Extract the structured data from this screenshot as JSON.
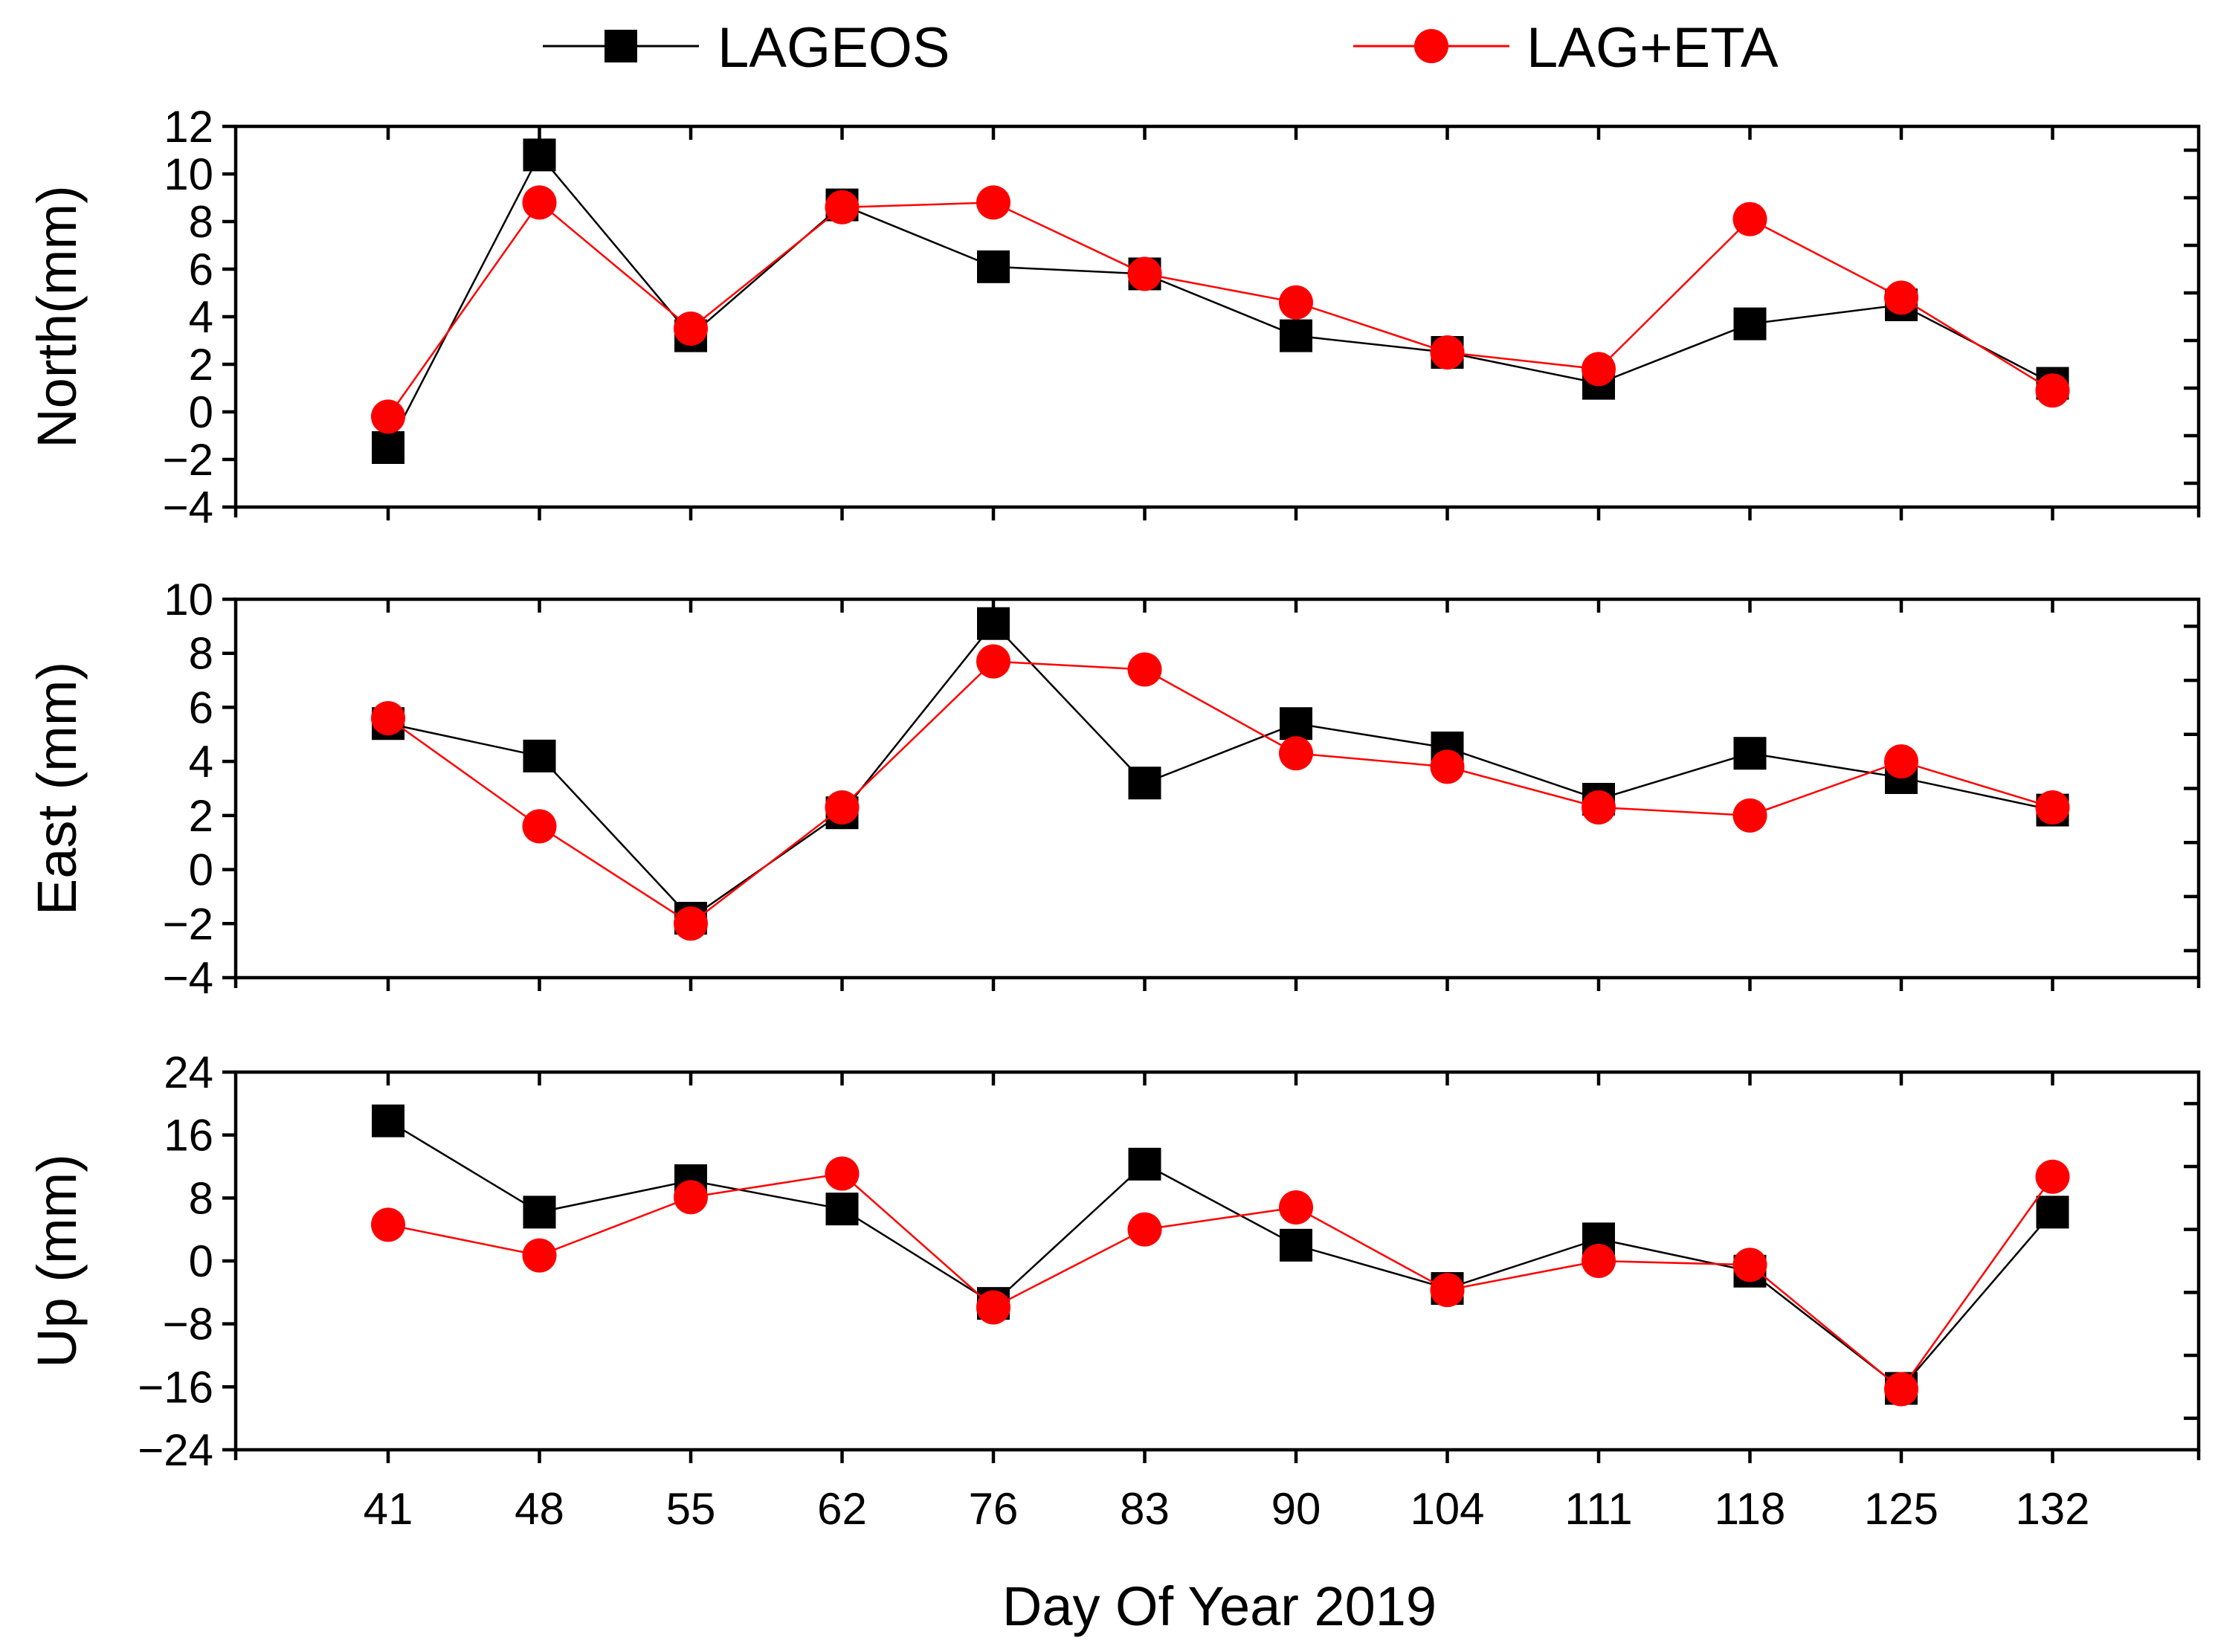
{
  "chart_data": {
    "type": "line",
    "categories": [
      "41",
      "48",
      "55",
      "62",
      "76",
      "83",
      "90",
      "104",
      "111",
      "118",
      "125",
      "132"
    ],
    "xlabel": "Day Of Year 2019",
    "legend": {
      "placement": "top",
      "entries": [
        "LAGEOS",
        "LAG+ETA"
      ]
    },
    "series_style": [
      {
        "name": "LAGEOS",
        "color": "#000000",
        "marker": "square"
      },
      {
        "name": "LAG+ETA",
        "color": "#ff0000",
        "marker": "circle"
      }
    ],
    "panels": [
      {
        "ylabel": "North(mm)",
        "ylim": [
          -4,
          12
        ],
        "yticks": [
          -4,
          -2,
          0,
          2,
          4,
          6,
          8,
          10,
          12
        ],
        "series": [
          {
            "name": "LAGEOS",
            "values": [
              -1.5,
              10.8,
              3.2,
              8.7,
              6.1,
              5.8,
              3.2,
              2.5,
              1.2,
              3.7,
              4.5,
              1.2
            ]
          },
          {
            "name": "LAG+ETA",
            "values": [
              -0.2,
              8.8,
              3.5,
              8.6,
              8.8,
              5.8,
              4.6,
              2.5,
              1.8,
              8.1,
              4.8,
              0.9
            ]
          }
        ]
      },
      {
        "ylabel": "East (mm)",
        "ylim": [
          -4,
          10
        ],
        "yticks": [
          -4,
          -2,
          0,
          2,
          4,
          6,
          8,
          10
        ],
        "series": [
          {
            "name": "LAGEOS",
            "values": [
              5.4,
              4.2,
              -1.8,
              2.1,
              9.1,
              3.2,
              5.4,
              4.5,
              2.6,
              4.3,
              3.4,
              2.2
            ]
          },
          {
            "name": "LAG+ETA",
            "values": [
              5.6,
              1.6,
              -2.0,
              2.3,
              7.7,
              7.4,
              4.3,
              3.8,
              2.3,
              2.0,
              4.0,
              2.3
            ]
          }
        ]
      },
      {
        "ylabel": "Up (mm)",
        "ylim": [
          -24,
          24
        ],
        "yticks": [
          -24,
          -16,
          -8,
          0,
          8,
          16,
          24
        ],
        "series": [
          {
            "name": "LAGEOS",
            "values": [
              17.8,
              6.2,
              10.2,
              6.6,
              -5.4,
              12.3,
              2.0,
              -3.5,
              2.8,
              -1.3,
              -16.2,
              6.2
            ]
          },
          {
            "name": "LAG+ETA",
            "values": [
              4.6,
              0.7,
              8.1,
              11.1,
              -5.9,
              4.0,
              6.8,
              -3.7,
              0.0,
              -0.5,
              -16.3,
              10.7
            ]
          }
        ]
      }
    ]
  }
}
